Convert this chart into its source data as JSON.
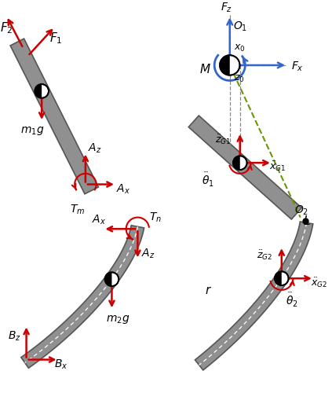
{
  "fig_bg": "#ffffff",
  "rod_color": "#909090",
  "rod_edge": "#555555",
  "arrow_red": "#cc0000",
  "arrow_blue": "#3366cc",
  "green_dash": "#669900",
  "black": "#000000",
  "gray_dash": "#888888",
  "white": "#ffffff"
}
